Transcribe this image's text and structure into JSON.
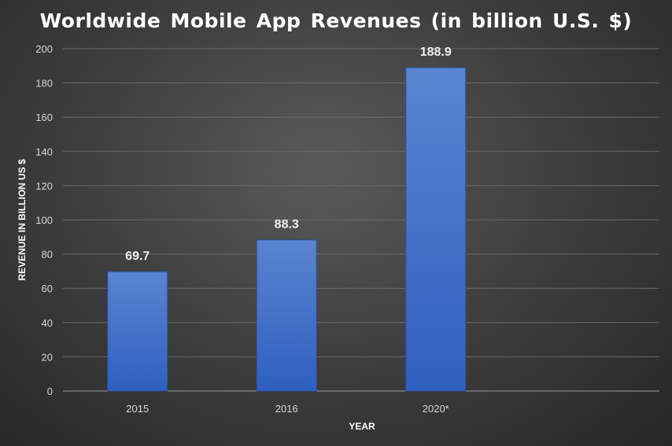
{
  "chart_data": {
    "type": "bar",
    "title": "Worldwide Mobile App Revenues (in billion U.S. $)",
    "xlabel": "YEAR",
    "ylabel": "REVENUE IN BILLION US $",
    "categories": [
      "2015",
      "2016",
      "2020*"
    ],
    "values": [
      69.7,
      88.3,
      188.9
    ],
    "data_labels": [
      "69.7",
      "88.3",
      "188.9"
    ],
    "ylim": [
      0,
      200
    ],
    "yticks": [
      0,
      20,
      40,
      60,
      80,
      100,
      120,
      140,
      160,
      180,
      200
    ],
    "grid": true,
    "bar_color": "#4472C4",
    "background_color": "#404040"
  }
}
